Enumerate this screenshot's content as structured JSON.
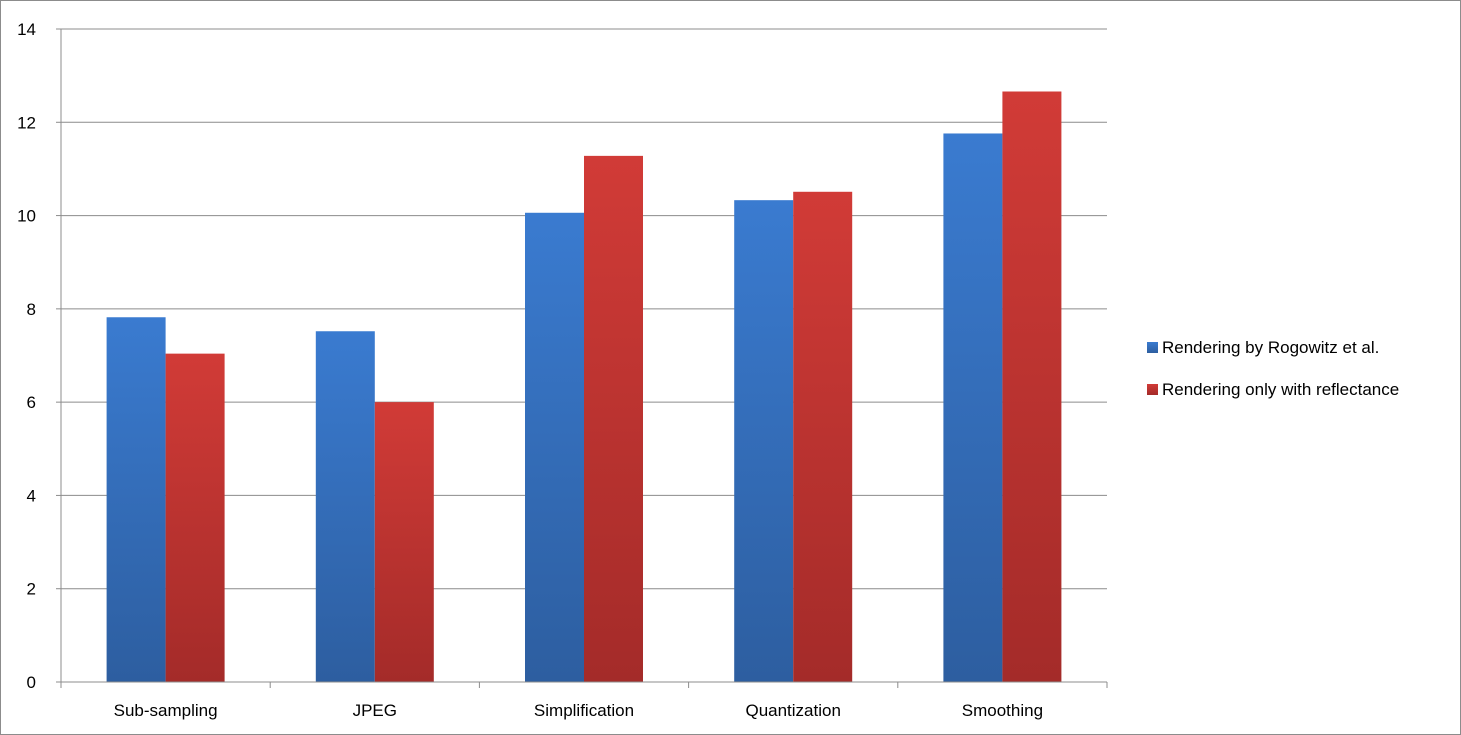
{
  "chart_data": {
    "type": "bar",
    "categories": [
      "Sub-sampling",
      "JPEG",
      "Simplification",
      "Quantization",
      "Smoothing"
    ],
    "series": [
      {
        "name": "Rendering by Rogowitz et al.",
        "color": "#3a7bd0",
        "color_dark": "#2d5ea0",
        "values": [
          7.82,
          7.52,
          10.06,
          10.33,
          11.76
        ]
      },
      {
        "name": "Rendering only with reflectance",
        "color": "#d13b37",
        "color_dark": "#a42b29",
        "values": [
          7.04,
          6.0,
          11.28,
          10.51,
          12.66
        ]
      }
    ],
    "title": "",
    "xlabel": "",
    "ylabel": "",
    "ylim": [
      0,
      14
    ],
    "yticks": [
      0,
      2,
      4,
      6,
      8,
      10,
      12,
      14
    ],
    "grid": true,
    "legend_position": "right"
  }
}
